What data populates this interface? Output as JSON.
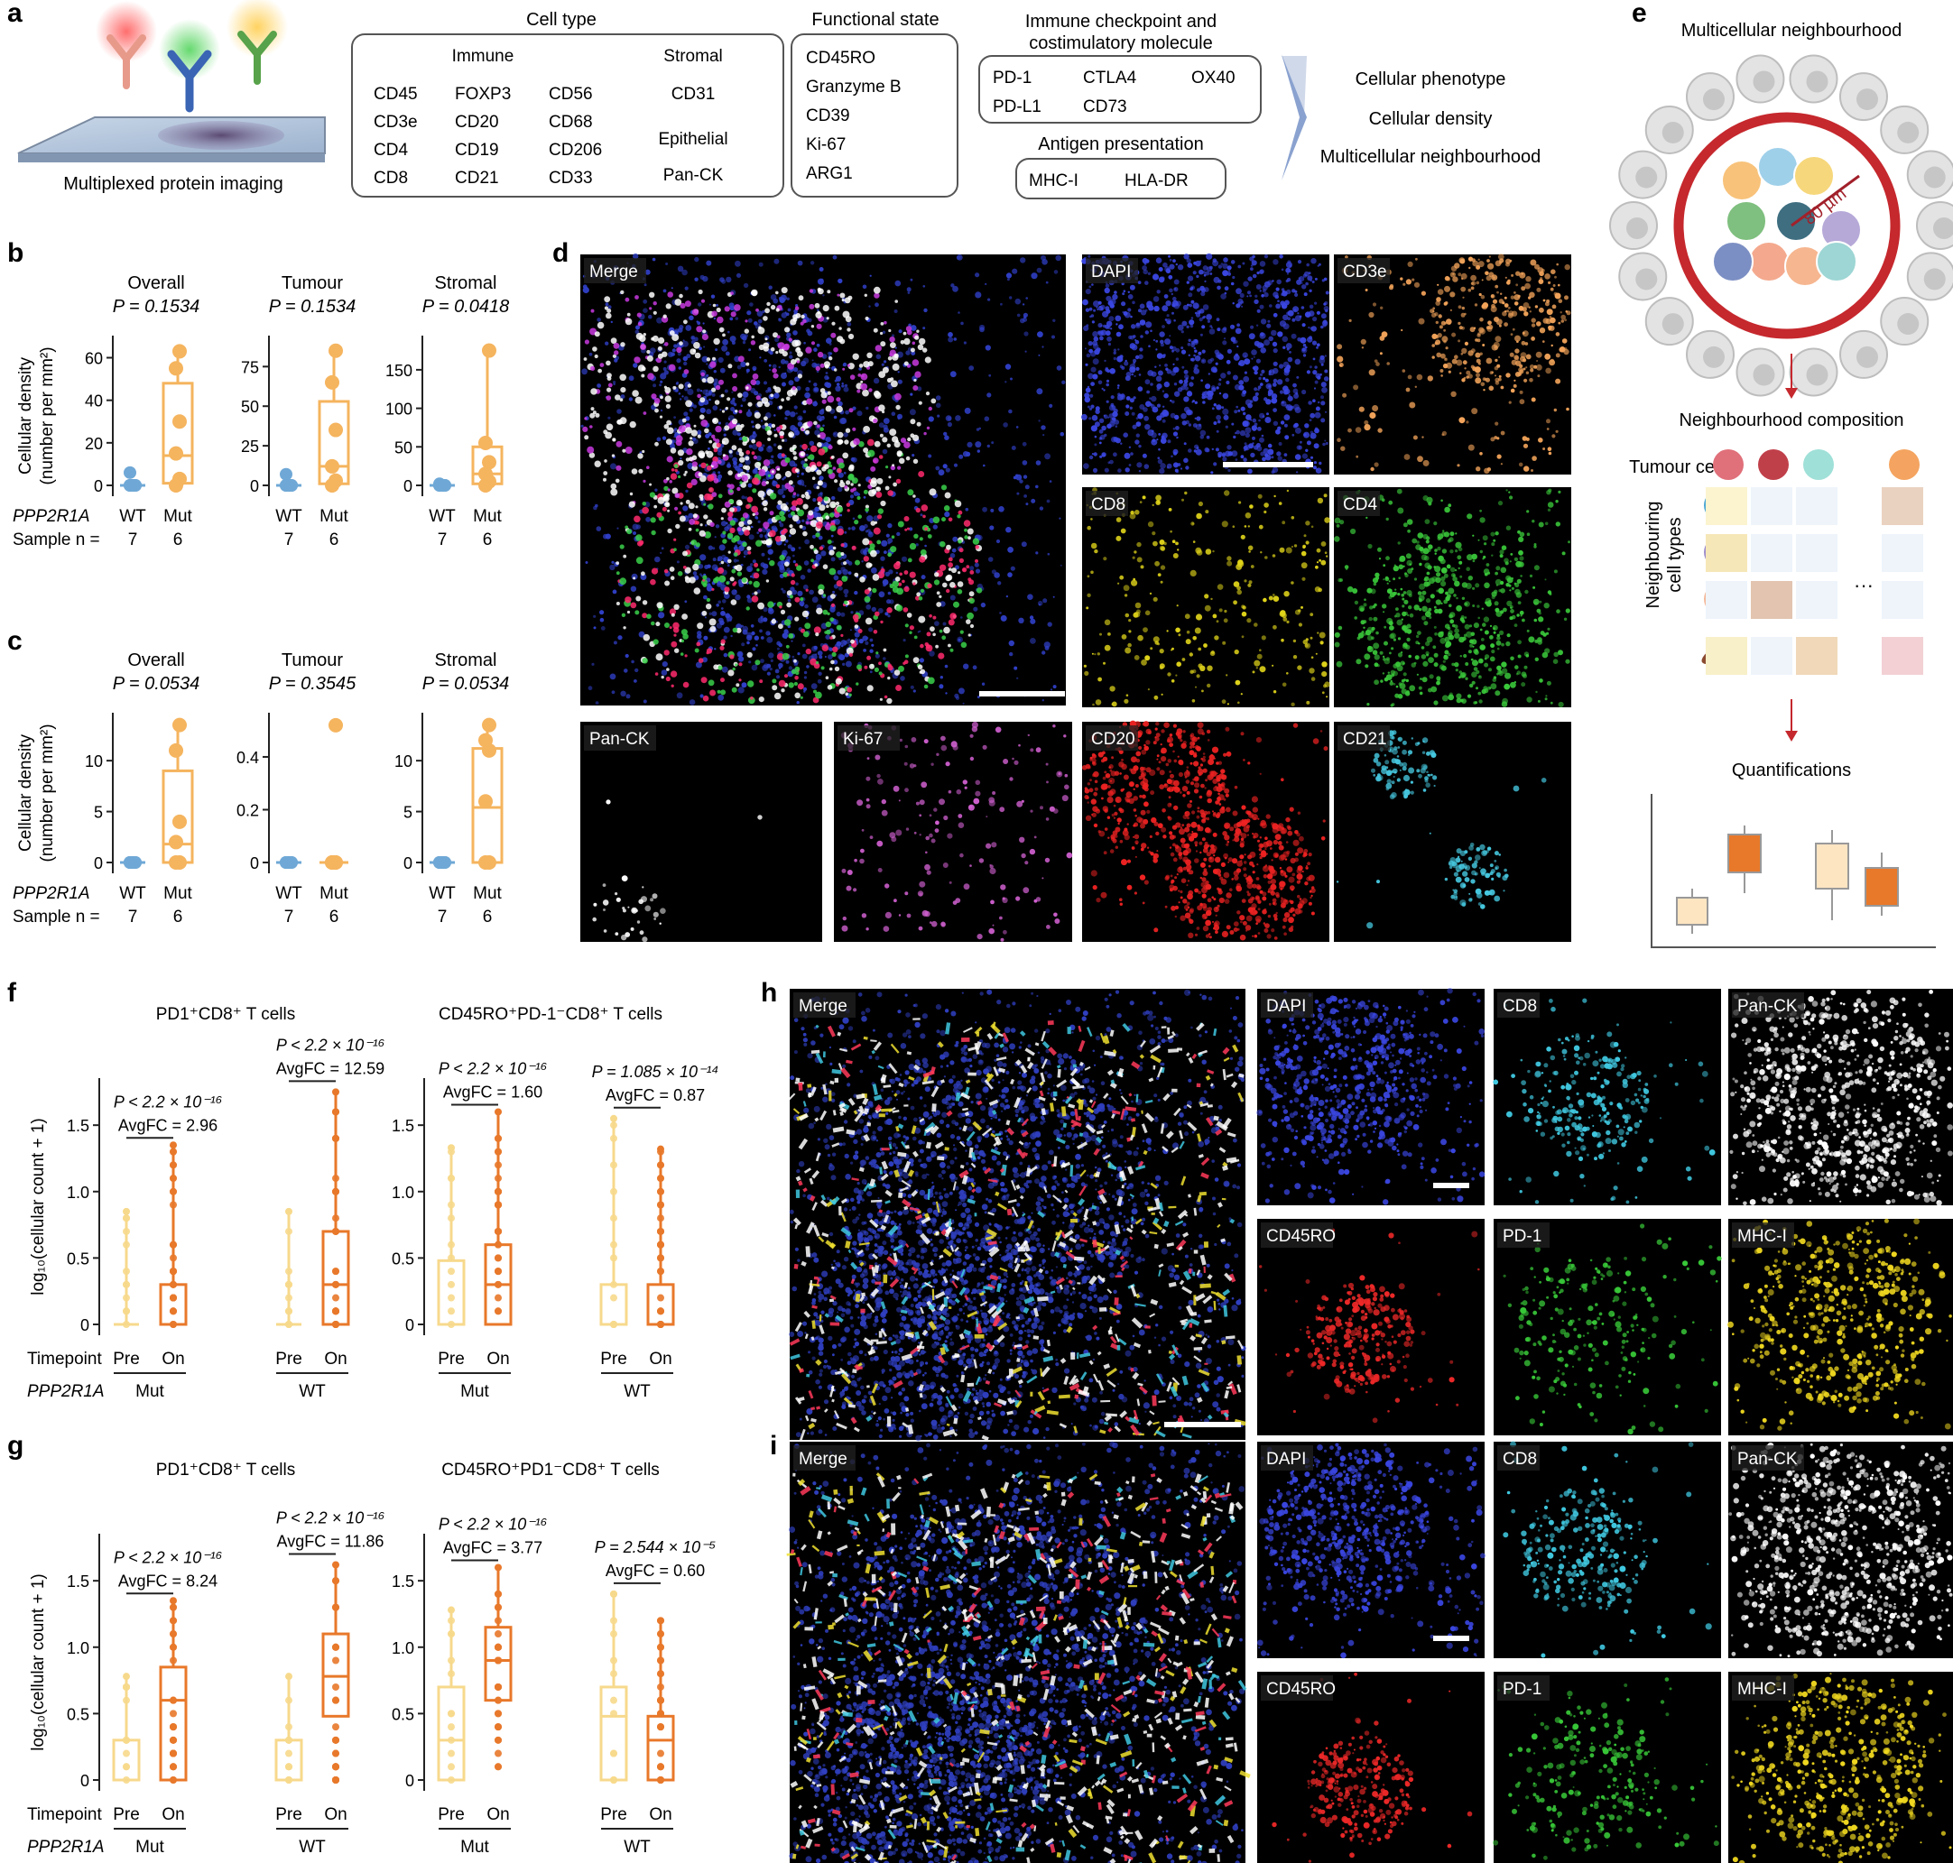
{
  "panel_a": {
    "label": "a",
    "imaging_caption": "Multiplexed protein imaging",
    "cell_type": {
      "title": "Cell type",
      "immune_heading": "Immune",
      "stromal_heading": "Stromal",
      "immune_col1": [
        "CD45",
        "CD3e",
        "CD4",
        "CD8"
      ],
      "immune_col2": [
        "FOXP3",
        "CD20",
        "CD19",
        "CD21"
      ],
      "immune_col3": [
        "CD56",
        "CD68",
        "CD206",
        "CD33"
      ],
      "stromal": "CD31",
      "epithelial_heading": "Epithelial",
      "epithelial": "Pan-CK"
    },
    "functional_state": {
      "title": "Functional state",
      "items": [
        "CD45RO",
        "Granzyme B",
        "CD39",
        "Ki-67",
        "ARG1"
      ]
    },
    "checkpoint": {
      "title_line1": "Immune checkpoint and",
      "title_line2": "costimulatory molecule",
      "items": [
        "PD-1",
        "CTLA4",
        "OX40",
        "PD-L1",
        "CD73"
      ]
    },
    "antigen": {
      "title": "Antigen presentation",
      "items": [
        "MHC-I",
        "HLA-DR"
      ]
    },
    "outputs": [
      "Cellular phenotype",
      "Cellular density",
      "Multicellular neighbourhood"
    ]
  },
  "panel_b": {
    "label": "b",
    "ylabel_line1": "Cellular density",
    "ylabel_line2": "(number per mm²)",
    "row_gene": "PPP2R1A",
    "row_sample": "Sample n =",
    "groups": [
      "WT",
      "Mut"
    ],
    "n": [
      "7",
      "6"
    ],
    "subplots": [
      {
        "title": "Overall",
        "p": "P = 0.1534",
        "ticks": [
          "0",
          "20",
          "40",
          "60"
        ],
        "ymax": 67,
        "wt": [
          0,
          0,
          0,
          0,
          0,
          0,
          6
        ],
        "mut": [
          0,
          3,
          15,
          30,
          55,
          63
        ],
        "wt_box": [
          0,
          0,
          0
        ],
        "mut_box": [
          1,
          14,
          48
        ]
      },
      {
        "title": "Tumour",
        "p": "P = 0.1534",
        "ticks": [
          "0",
          "25",
          "50",
          "75"
        ],
        "ymax": 90,
        "wt": [
          0,
          0,
          0,
          0,
          0,
          0,
          7
        ],
        "mut": [
          0,
          3,
          12,
          35,
          65,
          85
        ],
        "wt_box": [
          0,
          0,
          0
        ],
        "mut_box": [
          1,
          12,
          53
        ]
      },
      {
        "title": "Stromal",
        "p": "P = 0.0418",
        "ticks": [
          "0",
          "50",
          "100",
          "150"
        ],
        "ymax": 185,
        "wt": [
          0,
          0,
          0,
          0,
          0,
          0,
          2
        ],
        "mut": [
          0,
          5,
          15,
          30,
          55,
          175
        ],
        "wt_box": [
          0,
          0,
          0
        ],
        "mut_box": [
          2,
          15,
          50
        ]
      }
    ]
  },
  "panel_c": {
    "label": "c",
    "ylabel_line1": "Cellular density",
    "ylabel_line2": "(number per mm²)",
    "row_gene": "PPP2R1A",
    "row_sample": "Sample n =",
    "groups": [
      "WT",
      "Mut"
    ],
    "n": [
      "7",
      "6"
    ],
    "subplots": [
      {
        "title": "Overall",
        "p": "P = 0.0534",
        "ticks": [
          "0",
          "5",
          "10"
        ],
        "ymax": 14,
        "wt": [
          0,
          0,
          0,
          0,
          0,
          0,
          0
        ],
        "mut": [
          0,
          0,
          2,
          4,
          11,
          13.5
        ],
        "wt_box": [
          0,
          0,
          0
        ],
        "mut_box": [
          0,
          1.8,
          9
        ]
      },
      {
        "title": "Tumour",
        "p": "P = 0.3545",
        "ticks": [
          "0",
          "0.2",
          "0.4"
        ],
        "ymax": 0.54,
        "wt": [
          0,
          0,
          0,
          0,
          0,
          0,
          0
        ],
        "mut": [
          0,
          0,
          0,
          0,
          0,
          0.52
        ],
        "wt_box": [
          0,
          0,
          0
        ],
        "mut_box": [
          0,
          0,
          0
        ]
      },
      {
        "title": "Stromal",
        "p": "P = 0.0534",
        "ticks": [
          "0",
          "5",
          "10"
        ],
        "ymax": 14,
        "wt": [
          0,
          0,
          0,
          0,
          0,
          0,
          0
        ],
        "mut": [
          0,
          0,
          6,
          11,
          12,
          13.5
        ],
        "wt_box": [
          0,
          0,
          0
        ],
        "mut_box": [
          0,
          5.4,
          11.2
        ]
      }
    ]
  },
  "panel_d": {
    "label": "d",
    "channels": [
      "Merge",
      "DAPI",
      "CD3e",
      "CD8",
      "CD4",
      "Pan-CK",
      "Ki-67",
      "CD20",
      "CD21"
    ]
  },
  "panel_e": {
    "label": "e",
    "title": "Multicellular neighbourhood",
    "radius": "80 µm",
    "composition_title": "Neighbourhood composition",
    "tumour_cells": "Tumour cells",
    "neighbouring_line1": "Neighbouring",
    "neighbouring_line2": "cell types",
    "quant_title": "Quantifications"
  },
  "panel_f": {
    "label": "f",
    "ylabel": "log₁₀(cellular count + 1)",
    "ticks": [
      "0",
      "0.5",
      "1.0",
      "1.5"
    ],
    "timepoint_label": "Timepoint",
    "gene_label": "PPP2R1A",
    "left": {
      "title": "PD1⁺CD8⁺ T cells",
      "groups": [
        {
          "gene": "Mut",
          "pre": {
            "box": [
              0,
              0,
              0
            ],
            "whisker_max": 0.85
          },
          "on": {
            "box": [
              0,
              0,
              0.3
            ],
            "whisker_max": 1.35
          },
          "p": "P < 2.2 × 10⁻¹⁶",
          "fc": "AvgFC = 2.96"
        },
        {
          "gene": "WT",
          "pre": {
            "box": [
              0,
              0,
              0
            ],
            "whisker_max": 0.85
          },
          "on": {
            "box": [
              0,
              0.3,
              0.7
            ],
            "whisker_max": 1.75
          },
          "p": "P < 2.2 × 10⁻¹⁶",
          "fc": "AvgFC = 12.59"
        }
      ]
    },
    "right": {
      "title": "CD45RO⁺PD-1⁻CD8⁺ T cells",
      "groups": [
        {
          "gene": "Mut",
          "pre": {
            "box": [
              0,
              0,
              0.48
            ],
            "whisker_max": 1.33
          },
          "on": {
            "box": [
              0,
              0.3,
              0.6
            ],
            "whisker_max": 1.6
          },
          "p": "P < 2.2 × 10⁻¹⁶",
          "fc": "AvgFC = 1.60"
        },
        {
          "gene": "WT",
          "pre": {
            "box": [
              0,
              0,
              0.3
            ],
            "whisker_max": 1.55
          },
          "on": {
            "box": [
              0,
              0,
              0.3
            ],
            "whisker_max": 1.32
          },
          "p": "P = 1.085 × 10⁻¹⁴",
          "fc": "AvgFC = 0.87"
        }
      ]
    },
    "timepoints": [
      "Pre",
      "On"
    ]
  },
  "panel_g": {
    "label": "g",
    "ylabel": "log₁₀(cellular count + 1)",
    "ticks": [
      "0",
      "0.5",
      "1.0",
      "1.5"
    ],
    "timepoint_label": "Timepoint",
    "gene_label": "PPP2R1A",
    "left": {
      "title": "PD1⁺CD8⁺ T cells",
      "groups": [
        {
          "gene": "Mut",
          "pre": {
            "box": [
              0,
              0,
              0.3
            ],
            "whisker_max": 0.78
          },
          "on": {
            "box": [
              0,
              0.6,
              0.85
            ],
            "whisker_max": 1.35
          },
          "p": "P < 2.2 × 10⁻¹⁶",
          "fc": "AvgFC = 8.24"
        },
        {
          "gene": "WT",
          "pre": {
            "box": [
              0,
              0,
              0.3
            ],
            "whisker_max": 0.78
          },
          "on": {
            "box": [
              0.48,
              0.78,
              1.1
            ],
            "whisker_max": 1.62
          },
          "p": "P < 2.2 × 10⁻¹⁶",
          "fc": "AvgFC = 11.86"
        }
      ]
    },
    "right": {
      "title": "CD45RO⁺PD1⁻CD8⁺ T cells",
      "groups": [
        {
          "gene": "Mut",
          "pre": {
            "box": [
              0,
              0.3,
              0.7
            ],
            "whisker_max": 1.28
          },
          "on": {
            "box": [
              0.6,
              0.9,
              1.15
            ],
            "whisker_max": 1.6
          },
          "p": "P < 2.2 × 10⁻¹⁶",
          "fc": "AvgFC = 3.77"
        },
        {
          "gene": "WT",
          "pre": {
            "box": [
              0,
              0.48,
              0.7
            ],
            "whisker_max": 1.4
          },
          "on": {
            "box": [
              0,
              0.3,
              0.48
            ],
            "whisker_max": 1.2
          },
          "p": "P = 2.544 × 10⁻⁵",
          "fc": "AvgFC = 0.60"
        }
      ]
    },
    "timepoints": [
      "Pre",
      "On"
    ]
  },
  "panel_h": {
    "label": "h",
    "channels": [
      "Merge",
      "DAPI",
      "CD8",
      "Pan-CK",
      "CD45RO",
      "PD-1",
      "MHC-I"
    ]
  },
  "panel_i": {
    "label": "i",
    "channels": [
      "Merge",
      "DAPI",
      "CD8",
      "Pan-CK",
      "CD45RO",
      "PD-1",
      "MHC-I"
    ]
  },
  "colors": {
    "wt_blue": "#6fa8d6",
    "mut_orange": "#f5b45e",
    "pre_light": "#f7d98c",
    "on_dark": "#e8782a",
    "border_gray": "#6b6b6b"
  },
  "chart_data": [
    {
      "type": "scatter",
      "panel": "b",
      "subtitle": "Overall",
      "categories": [
        "WT",
        "Mut"
      ],
      "series": [
        {
          "name": "WT",
          "values": [
            0,
            0,
            0,
            0,
            0,
            0,
            6
          ]
        },
        {
          "name": "Mut",
          "values": [
            0,
            3,
            15,
            30,
            55,
            63
          ]
        }
      ],
      "ylim": [
        0,
        67
      ]
    },
    {
      "type": "scatter",
      "panel": "b",
      "subtitle": "Tumour",
      "categories": [
        "WT",
        "Mut"
      ],
      "series": [
        {
          "name": "WT",
          "values": [
            0,
            0,
            0,
            0,
            0,
            0,
            7
          ]
        },
        {
          "name": "Mut",
          "values": [
            0,
            3,
            12,
            35,
            65,
            85
          ]
        }
      ],
      "ylim": [
        0,
        90
      ]
    },
    {
      "type": "scatter",
      "panel": "b",
      "subtitle": "Stromal",
      "categories": [
        "WT",
        "Mut"
      ],
      "series": [
        {
          "name": "WT",
          "values": [
            0,
            0,
            0,
            0,
            0,
            0,
            2
          ]
        },
        {
          "name": "Mut",
          "values": [
            0,
            5,
            15,
            30,
            55,
            175
          ]
        }
      ],
      "ylim": [
        0,
        185
      ]
    },
    {
      "type": "scatter",
      "panel": "c",
      "subtitle": "Overall",
      "categories": [
        "WT",
        "Mut"
      ],
      "series": [
        {
          "name": "WT",
          "values": [
            0,
            0,
            0,
            0,
            0,
            0,
            0
          ]
        },
        {
          "name": "Mut",
          "values": [
            0,
            0,
            2,
            4,
            11,
            13.5
          ]
        }
      ],
      "ylim": [
        0,
        14
      ]
    },
    {
      "type": "scatter",
      "panel": "c",
      "subtitle": "Tumour",
      "categories": [
        "WT",
        "Mut"
      ],
      "series": [
        {
          "name": "WT",
          "values": [
            0,
            0,
            0,
            0,
            0,
            0,
            0
          ]
        },
        {
          "name": "Mut",
          "values": [
            0,
            0,
            0,
            0,
            0,
            0.52
          ]
        }
      ],
      "ylim": [
        0,
        0.54
      ]
    },
    {
      "type": "scatter",
      "panel": "c",
      "subtitle": "Stromal",
      "categories": [
        "WT",
        "Mut"
      ],
      "series": [
        {
          "name": "WT",
          "values": [
            0,
            0,
            0,
            0,
            0,
            0,
            0
          ]
        },
        {
          "name": "Mut",
          "values": [
            0,
            0,
            6,
            11,
            12,
            13.5
          ]
        }
      ],
      "ylim": [
        0,
        14
      ]
    }
  ]
}
